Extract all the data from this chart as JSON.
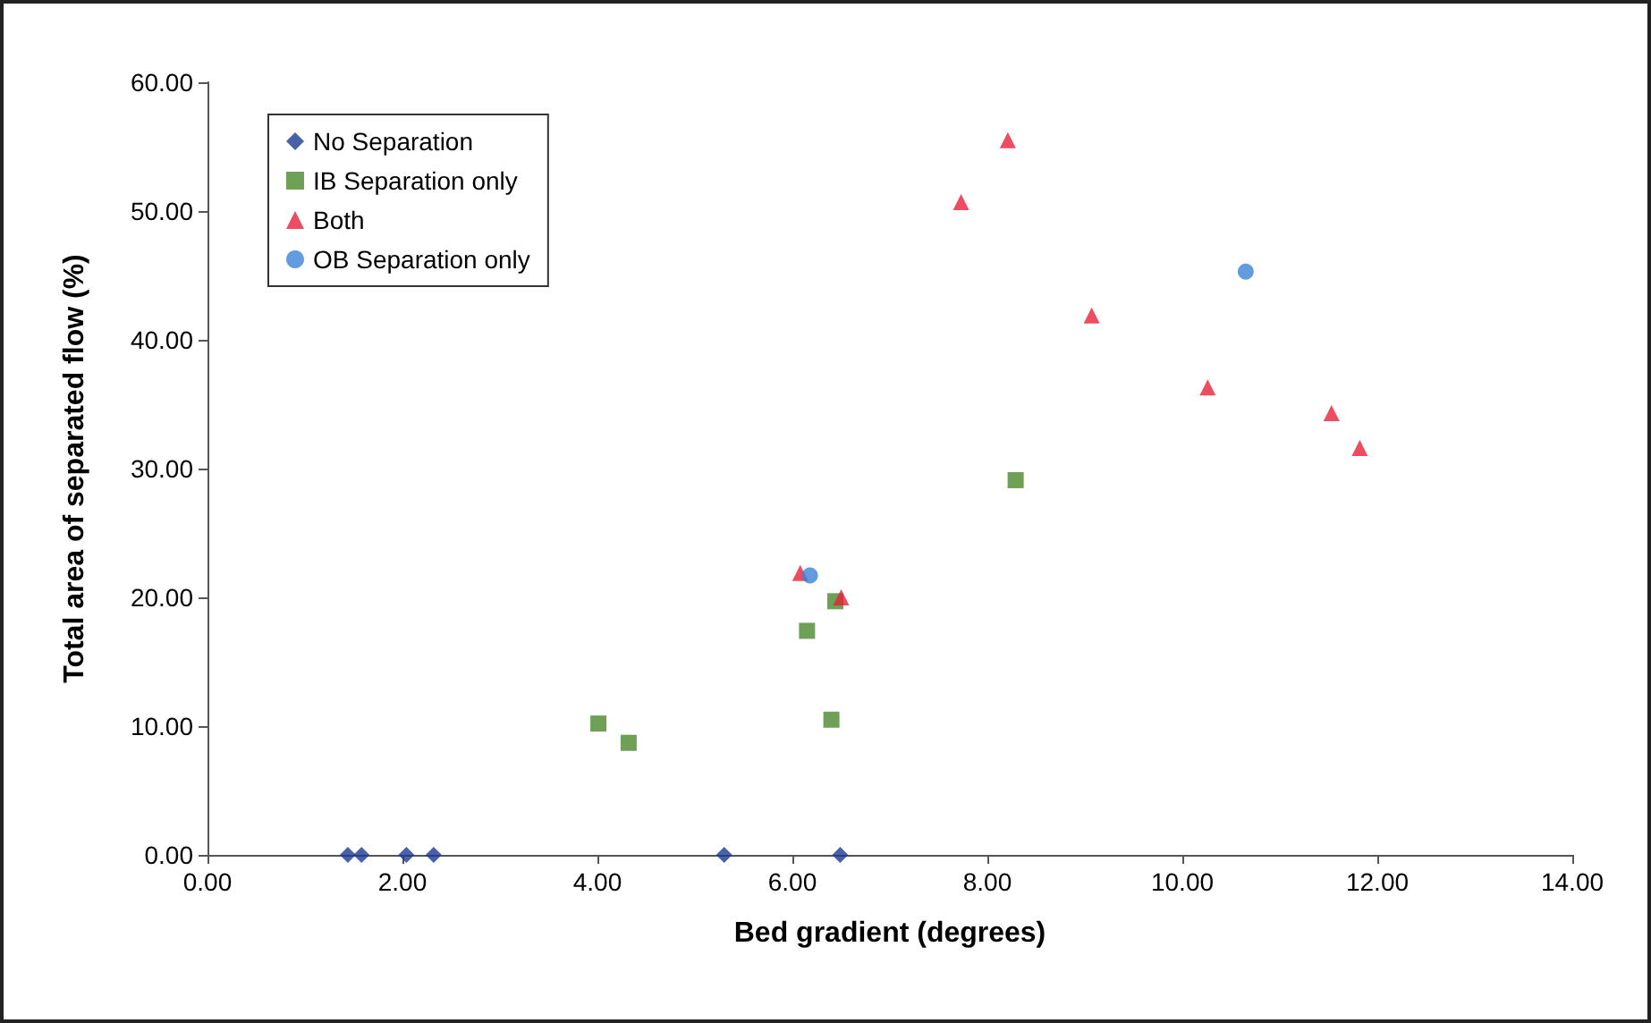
{
  "chart_data": {
    "type": "scatter",
    "xlabel": "Bed gradient (degrees)",
    "ylabel": "Total area of separated flow (%)",
    "series": [
      {
        "name": "No Separation",
        "color": "#1a3a94",
        "marker": "diamond",
        "x": [
          1.44,
          1.58,
          2.04,
          2.32,
          5.3,
          6.49
        ],
        "values": [
          0,
          0,
          0,
          0,
          0,
          0
        ]
      },
      {
        "name": "IB Separation only",
        "color": "#4a8a2a",
        "marker": "square",
        "x": [
          4.01,
          4.32,
          6.15,
          6.4,
          6.44,
          8.29
        ],
        "values": [
          10.2,
          8.7,
          17.4,
          10.5,
          19.7,
          29.1
        ]
      },
      {
        "name": "Both",
        "color": "#e8203a",
        "marker": "triangle",
        "x": [
          6.08,
          6.5,
          8.21,
          7.73,
          9.07,
          10.26,
          11.53,
          11.82
        ],
        "values": [
          21.9,
          20.0,
          55.5,
          50.7,
          41.9,
          36.3,
          34.3,
          31.6
        ]
      },
      {
        "name": "OB Separation only",
        "color": "#3b82d6",
        "marker": "circle",
        "x": [
          6.18,
          10.65
        ],
        "values": [
          21.7,
          45.3
        ]
      }
    ],
    "xlim": [
      0,
      14
    ],
    "xticks": [
      {
        "value": 0,
        "label": "0.00"
      },
      {
        "value": 2,
        "label": "2.00"
      },
      {
        "value": 4,
        "label": "4.00"
      },
      {
        "value": 6,
        "label": "6.00"
      },
      {
        "value": 8,
        "label": "8.00"
      },
      {
        "value": 10,
        "label": "10.00"
      },
      {
        "value": 12,
        "label": "12.00"
      },
      {
        "value": 14,
        "label": "14.00"
      }
    ],
    "ylim": [
      0,
      60
    ],
    "yticks": [
      {
        "value": 0,
        "label": "0.00"
      },
      {
        "value": 10,
        "label": "10.00"
      },
      {
        "value": 20,
        "label": "20.00"
      },
      {
        "value": 30,
        "label": "30.00"
      },
      {
        "value": 40,
        "label": "40.00"
      },
      {
        "value": 50,
        "label": "50.00"
      },
      {
        "value": 60,
        "label": "60.00"
      }
    ],
    "grid": false,
    "legend": "top left"
  }
}
